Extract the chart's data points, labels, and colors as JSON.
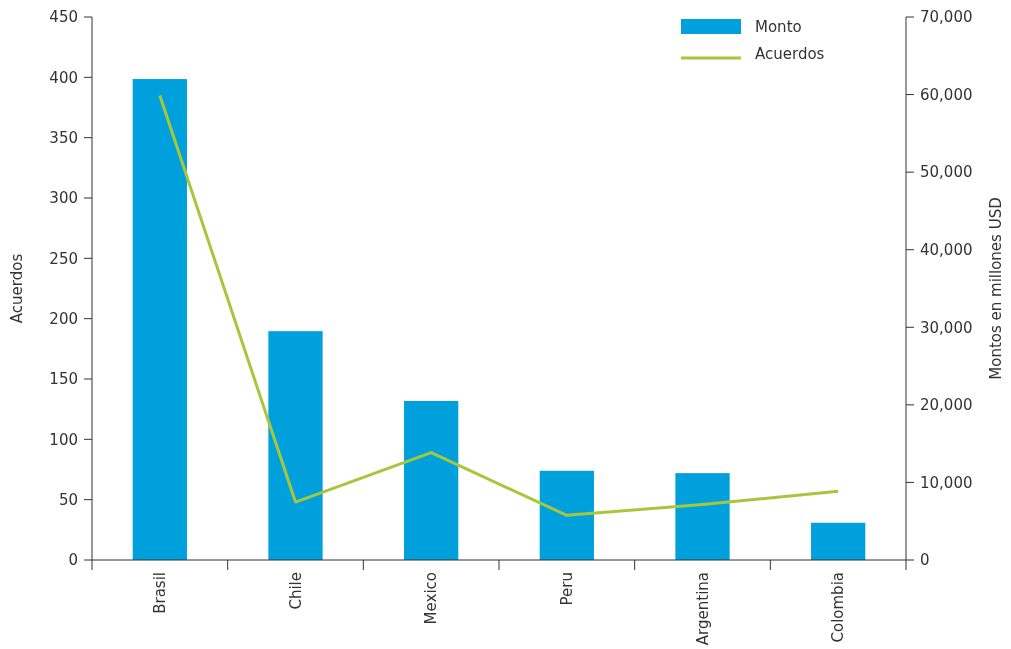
{
  "chart_data": {
    "type": "bar",
    "xlabel": null,
    "ylabel": "Acuerdos",
    "y2label": "Montos en millones USD",
    "categories": [
      "Brasil",
      "Chile",
      "Mexico",
      "Peru",
      "Argentina",
      "Colombia"
    ],
    "series": [
      {
        "name": "Monto",
        "axis": "y2",
        "color": "#00a0dc",
        "values": [
          62000,
          29500,
          20500,
          11500,
          11200,
          4800
        ]
      },
      {
        "name": "Acuerdos",
        "type": "line",
        "axis": "y",
        "color": "#a6c73c",
        "values": [
          385,
          48,
          89,
          37,
          46,
          57
        ]
      }
    ],
    "ylim": [
      0,
      450
    ],
    "yticks": [
      0,
      50,
      100,
      150,
      200,
      250,
      300,
      350,
      400,
      450
    ],
    "y2lim": [
      0,
      70000
    ],
    "y2ticks": [
      {
        "value": 0,
        "label": "0"
      },
      {
        "value": 10000,
        "label": "10,000"
      },
      {
        "value": 20000,
        "label": "20,000"
      },
      {
        "value": 30000,
        "label": "30,000"
      },
      {
        "value": 40000,
        "label": "40,000"
      },
      {
        "value": 50000,
        "label": "50,000"
      },
      {
        "value": 60000,
        "label": "60,000"
      },
      {
        "value": 70000,
        "label": "70,000"
      }
    ],
    "grid": false,
    "legend": "top right"
  }
}
